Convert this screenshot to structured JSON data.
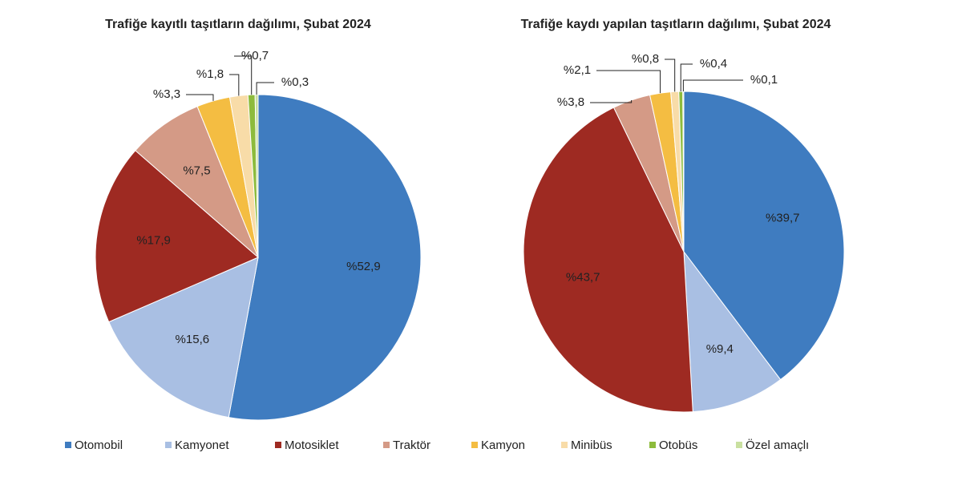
{
  "chart_data": [
    {
      "type": "pie",
      "title": "Trafiğe kayıtlı taşıtların dağılımı, Şubat 2024",
      "categories": [
        "Otomobil",
        "Kamyonet",
        "Motosiklet",
        "Traktör",
        "Kamyon",
        "Minibüs",
        "Otobüs",
        "Özel amaçlı"
      ],
      "values": [
        52.9,
        15.6,
        17.9,
        7.5,
        3.3,
        1.8,
        0.7,
        0.3
      ],
      "value_labels": [
        "%52,9",
        "%15,6",
        "%17,9",
        "%7,5",
        "%3,3",
        "%1,8",
        "%0,7",
        "%0,3"
      ],
      "colors": [
        "#3f7cc0",
        "#a9bfe3",
        "#9e2a22",
        "#d49a86",
        "#f4bd42",
        "#f8dca8",
        "#8dbb3c",
        "#c9e0a0"
      ]
    },
    {
      "type": "pie",
      "title": "Trafiğe kaydı yapılan taşıtların dağılımı, Şubat 2024",
      "categories": [
        "Otomobil",
        "Kamyonet",
        "Motosiklet",
        "Traktör",
        "Kamyon",
        "Minibüs",
        "Otobüs",
        "Özel amaçlı"
      ],
      "values": [
        39.7,
        9.4,
        43.7,
        3.8,
        2.1,
        0.8,
        0.4,
        0.1
      ],
      "value_labels": [
        "%39,7",
        "%9,4",
        "%43,7",
        "%3,8",
        "%2,1",
        "%0,8",
        "%0,4",
        "%0,1"
      ],
      "colors": [
        "#3f7cc0",
        "#a9bfe3",
        "#9e2a22",
        "#d49a86",
        "#f4bd42",
        "#f8dca8",
        "#8dbb3c",
        "#c9e0a0"
      ]
    }
  ]
}
